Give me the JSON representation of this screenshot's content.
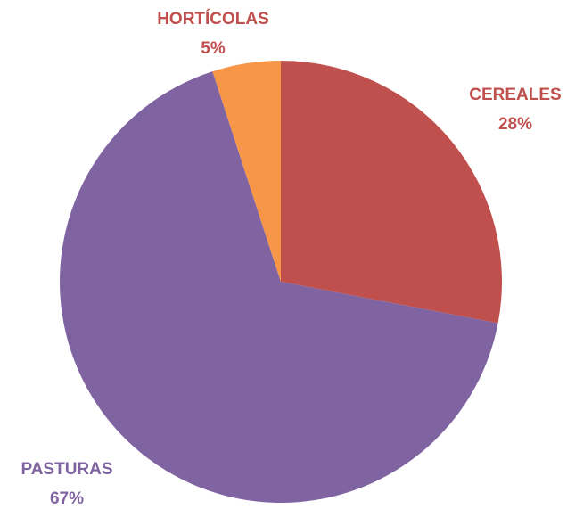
{
  "chart_data": {
    "type": "pie",
    "categories": [
      "CEREALES",
      "PASTURAS",
      "HORTÍCOLAS"
    ],
    "values": [
      28,
      67,
      5
    ],
    "value_labels": [
      "28%",
      "67%",
      "5%"
    ],
    "colors": [
      "#c0504d",
      "#8064a2",
      "#f79646"
    ],
    "label_colors": [
      "#c0504d",
      "#8064a2",
      "#c0504d"
    ]
  }
}
